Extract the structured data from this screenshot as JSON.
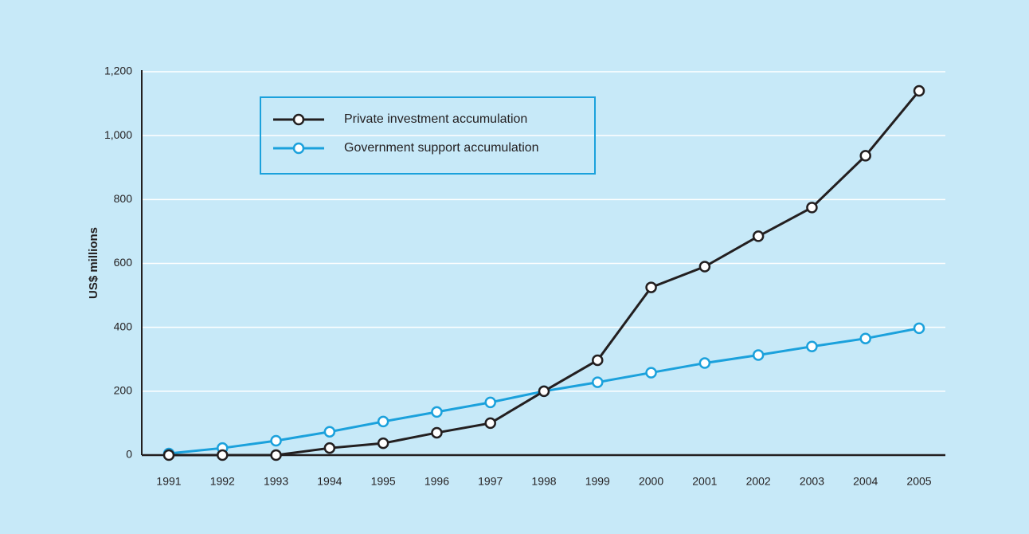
{
  "chart_data": {
    "type": "line",
    "y_label": "US$ millions",
    "categories": [
      "1991",
      "1992",
      "1993",
      "1994",
      "1995",
      "1996",
      "1997",
      "1998",
      "1999",
      "2000",
      "2001",
      "2002",
      "2003",
      "2004",
      "2005"
    ],
    "series": [
      {
        "name": "Private investment accumulation",
        "color": "#231f20",
        "values": [
          0,
          0,
          0,
          22,
          37,
          70,
          100,
          200,
          297,
          525,
          590,
          685,
          775,
          937,
          1140
        ]
      },
      {
        "name": "Government support accumulation",
        "color": "#1ba1dc",
        "values": [
          5,
          22,
          45,
          73,
          105,
          135,
          165,
          200,
          228,
          258,
          288,
          313,
          340,
          365,
          397
        ]
      }
    ],
    "ylim": [
      0,
      1200
    ],
    "yticks": [
      0,
      200,
      400,
      600,
      800,
      {
        "value": 1000,
        "label": "1,000"
      },
      {
        "value": 1200,
        "label": "1,200"
      }
    ],
    "grid": true,
    "legend": "upper left"
  }
}
